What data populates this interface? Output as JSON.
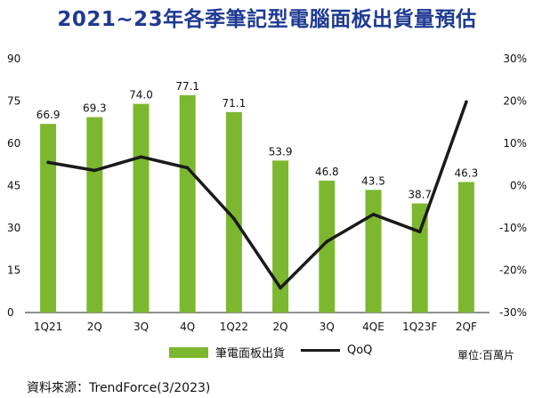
{
  "chart_data": {
    "type": "bar",
    "title": "2021~23年各季筆記型電腦面板出貨量預估",
    "categories": [
      "1Q21",
      "2Q",
      "3Q",
      "4Q",
      "1Q22",
      "2Q",
      "3Q",
      "4QE",
      "1Q23F",
      "2QF"
    ],
    "series": [
      {
        "name": "筆電面板出貨",
        "type": "bar",
        "axis": "left",
        "values": [
          66.9,
          69.3,
          74.0,
          77.1,
          71.1,
          53.9,
          46.8,
          43.5,
          38.7,
          46.3
        ],
        "labels": [
          "66.9",
          "69.3",
          "74.0",
          "77.1",
          "71.1",
          "53.9",
          "46.8",
          "43.5",
          "38.7",
          "46.3"
        ]
      },
      {
        "name": "QoQ",
        "type": "line",
        "axis": "right",
        "values": [
          5.5,
          3.6,
          6.8,
          4.2,
          -7.8,
          -24.2,
          -13.2,
          -6.8,
          -10.9,
          19.8
        ]
      }
    ],
    "left_axis": {
      "ylim": [
        0,
        90
      ],
      "ticks": [
        "0",
        "15",
        "30",
        "45",
        "60",
        "75",
        "90"
      ]
    },
    "right_axis": {
      "ylim": [
        -30,
        30
      ],
      "ticks": [
        "-30%",
        "-20%",
        "-10%",
        "0%",
        "10%",
        "20%",
        "30%"
      ]
    },
    "unit_label": "單位:百萬片",
    "source": "資料來源：TrendForce(3/2023)",
    "grid": false,
    "legend_position": "bottom",
    "colors": {
      "bar": "#7cb82f",
      "line": "#1a1a1a",
      "title": "#1f3a93"
    }
  }
}
